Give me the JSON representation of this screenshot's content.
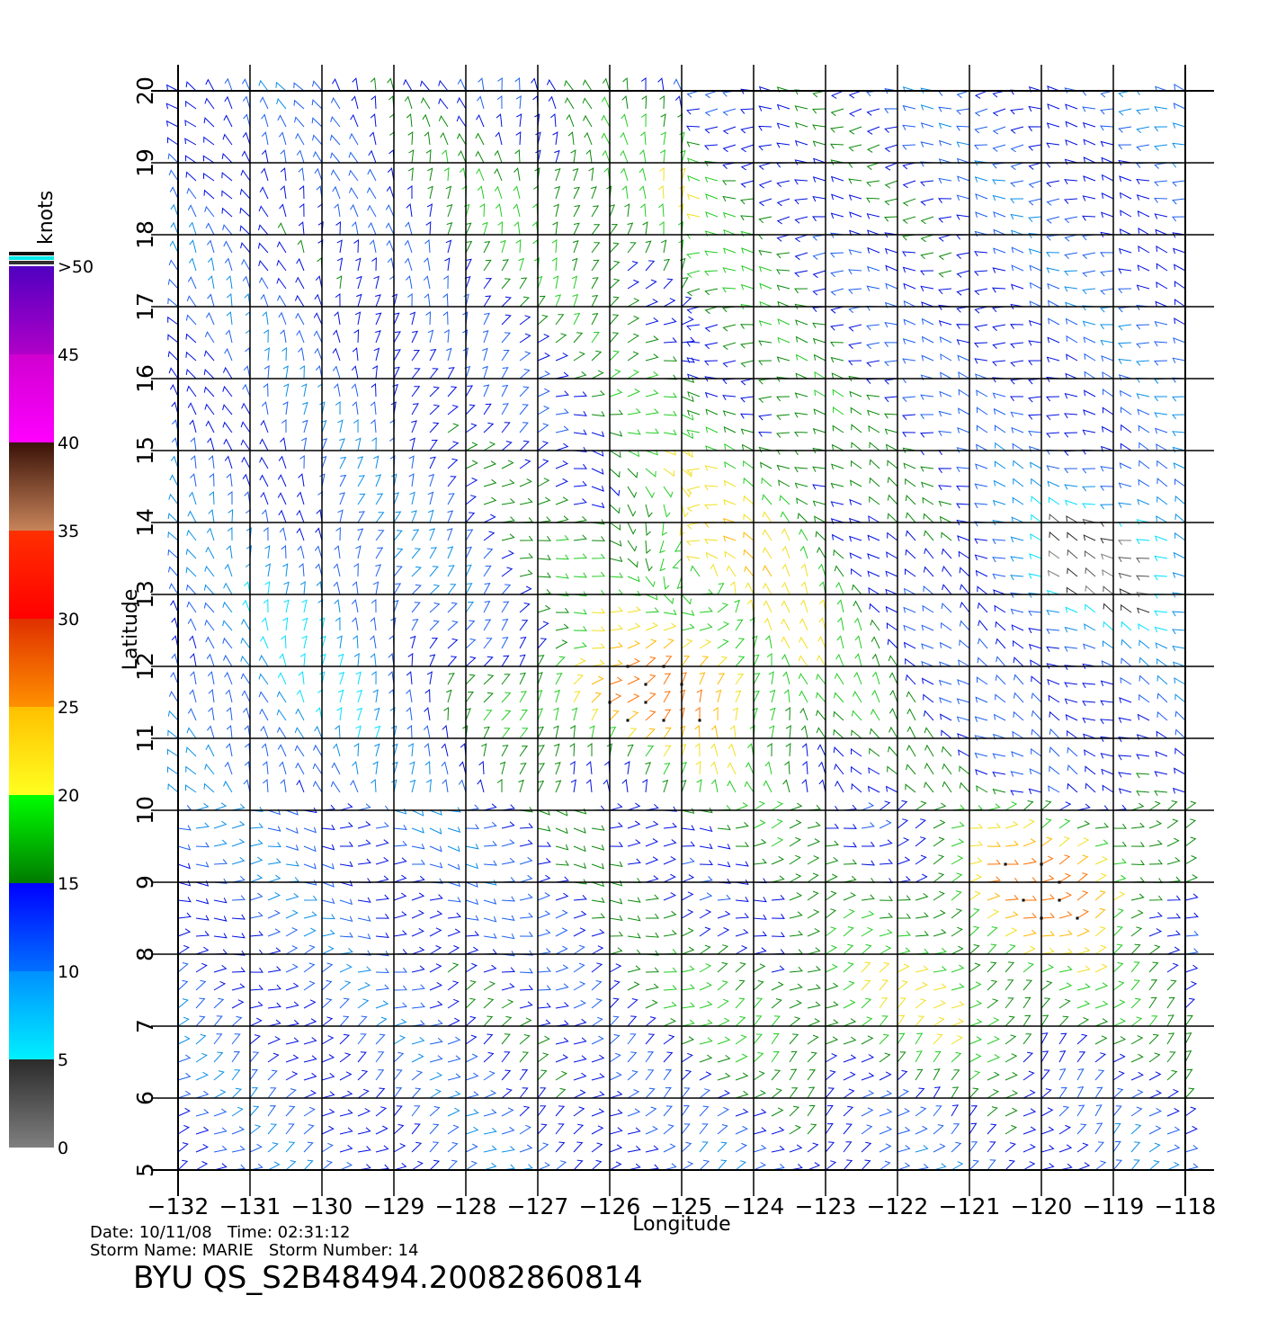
{
  "map": {
    "xlabel": "Longitude",
    "ylabel": "Latitude",
    "lon_range": [
      -132,
      -118
    ],
    "lat_range": [
      5,
      20
    ],
    "lon_ticks": [
      "−132",
      "−131",
      "−130",
      "−129",
      "−128",
      "−127",
      "−126",
      "−125",
      "−124",
      "−123",
      "−122",
      "−121",
      "−120",
      "−119",
      "−118"
    ],
    "lat_ticks": [
      "5",
      "6",
      "7",
      "8",
      "9",
      "10",
      "11",
      "12",
      "13",
      "14",
      "15",
      "16",
      "17",
      "18",
      "19",
      "20"
    ],
    "grid": true,
    "vector_field": "wind barbs colored by speed"
  },
  "colorbar": {
    "unit": "knots",
    "labels": [
      "0",
      "5",
      "10",
      "15",
      "20",
      "25",
      "30",
      "35",
      "40",
      "45",
      ">50"
    ],
    "bands": [
      {
        "range": [
          0,
          5
        ],
        "colors": [
          "#7f7f7f",
          "#2b2b2b"
        ]
      },
      {
        "range": [
          5,
          10
        ],
        "colors": [
          "#00f0ff",
          "#0090ff"
        ]
      },
      {
        "range": [
          10,
          15
        ],
        "colors": [
          "#0070ff",
          "#0000ff"
        ]
      },
      {
        "range": [
          15,
          20
        ],
        "colors": [
          "#007a00",
          "#00ff00"
        ]
      },
      {
        "range": [
          20,
          25
        ],
        "colors": [
          "#ffff20",
          "#ffc000"
        ]
      },
      {
        "range": [
          25,
          30
        ],
        "colors": [
          "#ff9000",
          "#e03000"
        ]
      },
      {
        "range": [
          30,
          35
        ],
        "colors": [
          "#ff0000",
          "#ff3000"
        ]
      },
      {
        "range": [
          35,
          40
        ],
        "colors": [
          "#c8845a",
          "#3a1208"
        ]
      },
      {
        "range": [
          40,
          45
        ],
        "colors": [
          "#ff00ff",
          "#d000d0"
        ]
      },
      {
        "range": [
          45,
          50
        ],
        "colors": [
          "#b000c8",
          "#5000c0"
        ]
      }
    ],
    "overflow_stripes": [
      "#101010",
      "#00e8e8",
      "#303030"
    ]
  },
  "info": {
    "date_line": "Date: 10/11/08   Time: 02:31:12",
    "storm_line": "Storm Name: MARIE   Storm Number: 14",
    "product": "BYU QS_S2B48494.20082860814"
  }
}
